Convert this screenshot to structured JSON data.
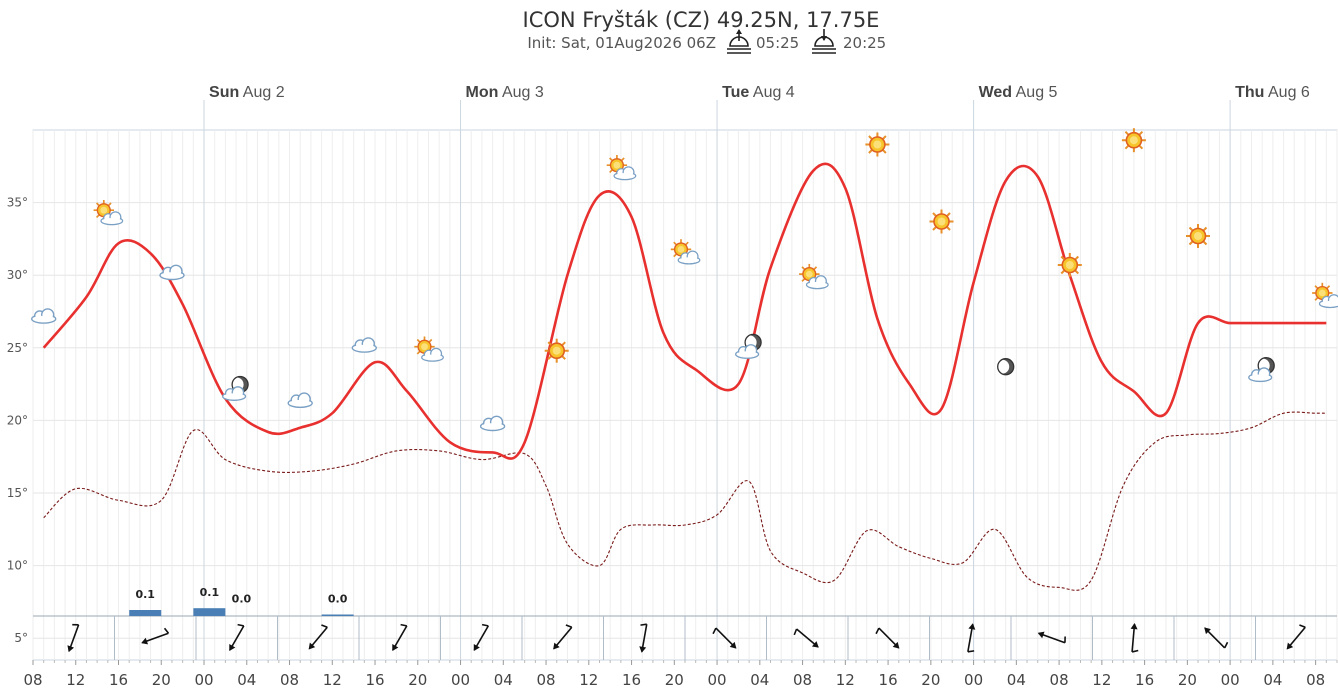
{
  "chart_data": {
    "type": "line",
    "title": "ICON Fryšták (CZ) 49.25N, 17.75E",
    "subtitle_init": "Init: Sat, 01Aug2026 06Z",
    "sunrise": "05:25",
    "sunset": "20:25",
    "day_labels": [
      {
        "day": "Sun",
        "date": "Aug 2"
      },
      {
        "day": "Mon",
        "date": "Aug 3"
      },
      {
        "day": "Tue",
        "date": "Aug 4"
      },
      {
        "day": "Wed",
        "date": "Aug 5"
      },
      {
        "day": "Thu",
        "date": "Aug 6"
      }
    ],
    "x_tick_labels": [
      "08",
      "12",
      "16",
      "20",
      "00",
      "04",
      "08",
      "12",
      "16",
      "20",
      "00",
      "04",
      "08",
      "12",
      "16",
      "20",
      "00",
      "04",
      "08",
      "12",
      "16",
      "20",
      "00",
      "04",
      "08",
      "12",
      "16",
      "20",
      "00",
      "04",
      "08"
    ],
    "x_range_hours": [
      0,
      122
    ],
    "y_tick_labels": [
      "5°",
      "10°",
      "15°",
      "20°",
      "25°",
      "30°",
      "35°"
    ],
    "ylim": [
      3.5,
      40
    ],
    "series": [
      {
        "kind": "temperature",
        "color": "#e8302f",
        "x": [
          1,
          5,
          8,
          11,
          14,
          18,
          22,
          25,
          28,
          32,
          35,
          39,
          43,
          46,
          50,
          53,
          56,
          59,
          62,
          66,
          69,
          73,
          76,
          79,
          82,
          85,
          88,
          91,
          94,
          97,
          100,
          103,
          106,
          109,
          112,
          115,
          118,
          121
        ],
        "y": [
          25,
          28.5,
          32.2,
          31.5,
          28,
          21.5,
          19.2,
          19.5,
          20.5,
          24,
          22,
          18.5,
          17.8,
          18.5,
          30,
          35.5,
          34,
          26,
          23.5,
          22.5,
          30.5,
          37.2,
          36,
          27,
          22.5,
          20.8,
          29.5,
          36.5,
          36.8,
          30,
          24,
          22,
          20.5,
          26.7,
          26.7,
          26.7,
          26.7,
          26.7
        ]
      },
      {
        "kind": "dewpoint",
        "color": "#7a1a1a",
        "x": [
          1,
          4,
          8,
          12,
          15,
          18,
          22,
          26,
          30,
          34,
          38,
          42,
          46,
          48,
          50,
          53,
          55,
          58,
          61,
          64,
          67,
          69,
          72,
          75,
          78,
          81,
          84,
          87,
          90,
          93,
          96,
          99,
          102,
          105,
          108,
          111,
          114,
          117,
          120,
          121
        ],
        "y": [
          13.3,
          15.3,
          14.5,
          14.5,
          19.3,
          17.3,
          16.5,
          16.5,
          17.0,
          17.9,
          17.9,
          17.3,
          17.7,
          15.5,
          11.5,
          10.0,
          12.5,
          12.8,
          12.8,
          13.5,
          15.8,
          11,
          9.5,
          9,
          12.4,
          11.3,
          10.5,
          10.2,
          12.5,
          9.2,
          8.5,
          9,
          15.5,
          18.5,
          19,
          19.1,
          19.5,
          20.5,
          20.5,
          20.5
        ]
      }
    ],
    "precipitation": [
      {
        "x": 10.5,
        "value": 0.1,
        "label": "0.1"
      },
      {
        "x": 16.5,
        "value": 0.13,
        "label": "0.1"
      },
      {
        "x": 19.5,
        "value": 0.0,
        "label": "0.0"
      },
      {
        "x": 28.5,
        "value": 0.02,
        "label": "0.0"
      }
    ],
    "weather_icons": [
      {
        "x": 1,
        "y": 27.2,
        "icon": "cloud"
      },
      {
        "x": 7,
        "y": 34.2,
        "icon": "sun-cloud"
      },
      {
        "x": 13,
        "y": 30.2,
        "icon": "cloud"
      },
      {
        "x": 19,
        "y": 22.2,
        "icon": "moon-cloud"
      },
      {
        "x": 25,
        "y": 21.4,
        "icon": "cloud"
      },
      {
        "x": 31,
        "y": 25.2,
        "icon": "cloud"
      },
      {
        "x": 37,
        "y": 24.8,
        "icon": "sun-cloud"
      },
      {
        "x": 43,
        "y": 19.8,
        "icon": "cloud"
      },
      {
        "x": 49,
        "y": 24.8,
        "icon": "sun"
      },
      {
        "x": 55,
        "y": 37.3,
        "icon": "sun-cloud"
      },
      {
        "x": 61,
        "y": 31.5,
        "icon": "sun-cloud"
      },
      {
        "x": 67,
        "y": 25.1,
        "icon": "moon-cloud"
      },
      {
        "x": 73,
        "y": 29.8,
        "icon": "sun-cloud"
      },
      {
        "x": 79,
        "y": 39.0,
        "icon": "sun"
      },
      {
        "x": 85,
        "y": 33.7,
        "icon": "sun"
      },
      {
        "x": 91,
        "y": 23.7,
        "icon": "moon"
      },
      {
        "x": 97,
        "y": 30.7,
        "icon": "sun"
      },
      {
        "x": 103,
        "y": 39.3,
        "icon": "sun"
      },
      {
        "x": 109,
        "y": 32.7,
        "icon": "sun"
      },
      {
        "x": 115,
        "y": 23.5,
        "icon": "moon-cloud"
      },
      {
        "x": 121,
        "y": 28.5,
        "icon": "sun-cloud"
      }
    ],
    "wind_directions_deg": [
      200,
      250,
      210,
      220,
      210,
      210,
      220,
      190,
      135,
      130,
      135,
      10,
      290,
      5,
      315,
      220
    ],
    "grid": true
  }
}
